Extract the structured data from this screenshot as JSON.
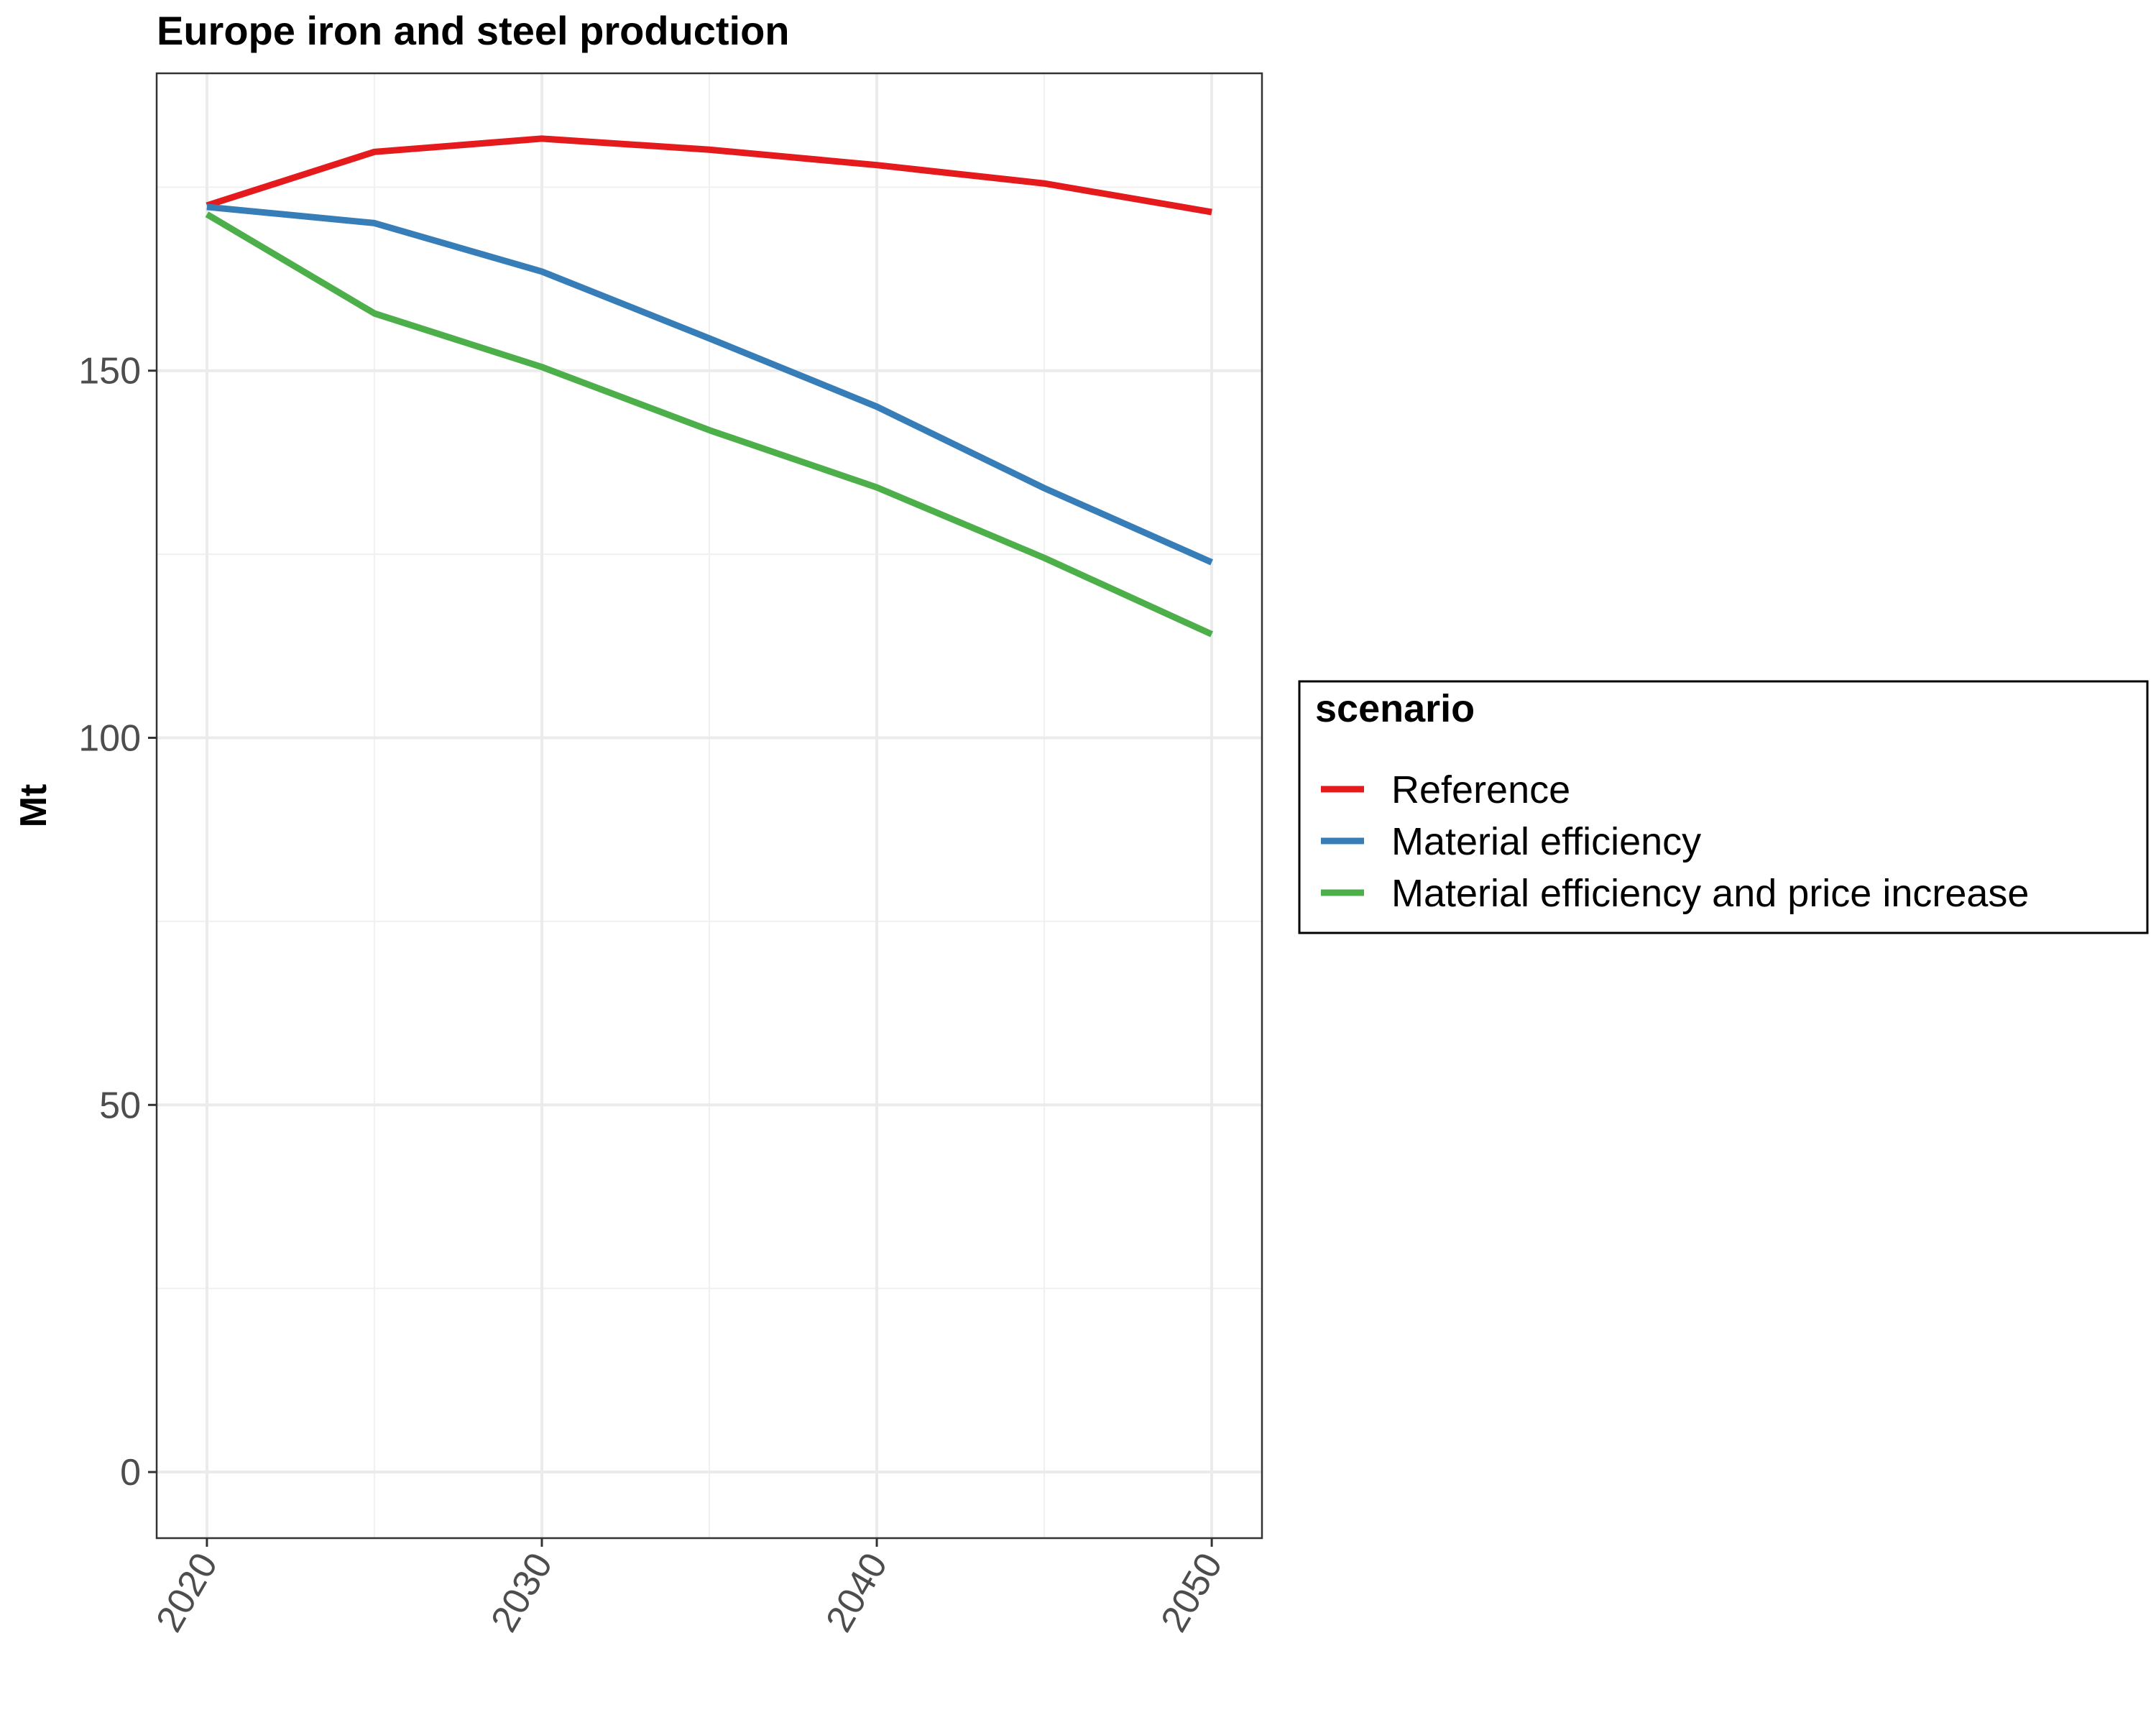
{
  "chart_data": {
    "type": "line",
    "title": "Europe  iron and steel production",
    "xlabel": "",
    "ylabel": "Mt",
    "x": [
      2020,
      2025,
      2030,
      2035,
      2040,
      2045,
      2050
    ],
    "xlim": [
      2018.5,
      2051.5
    ],
    "ylim": [
      -9,
      190.5
    ],
    "x_ticks": [
      2020,
      2030,
      2040,
      2050
    ],
    "x_tick_labels": [
      "2020",
      "2030",
      "2040",
      "2050"
    ],
    "x_minor_ticks": [
      2025,
      2035,
      2045
    ],
    "y_ticks": [
      0,
      50,
      100,
      150
    ],
    "y_tick_labels": [
      "0",
      "50",
      "100",
      "150"
    ],
    "y_minor_ticks": [
      25,
      75,
      125,
      175
    ],
    "grid": true,
    "legend_title": "scenario",
    "legend_position": "right",
    "series": [
      {
        "name": "Reference",
        "color": "#e41a1c",
        "values": [
          172.5,
          179.8,
          181.6,
          180.1,
          178.0,
          175.5,
          171.6
        ]
      },
      {
        "name": "Material efficiency",
        "color": "#377eb8",
        "values": [
          172.3,
          170.1,
          163.5,
          154.4,
          145.1,
          134.0,
          123.9
        ]
      },
      {
        "name": "Material efficiency and price increase",
        "color": "#4daf4a",
        "values": [
          171.3,
          157.8,
          150.5,
          141.9,
          134.1,
          124.5,
          114.1
        ]
      }
    ]
  }
}
